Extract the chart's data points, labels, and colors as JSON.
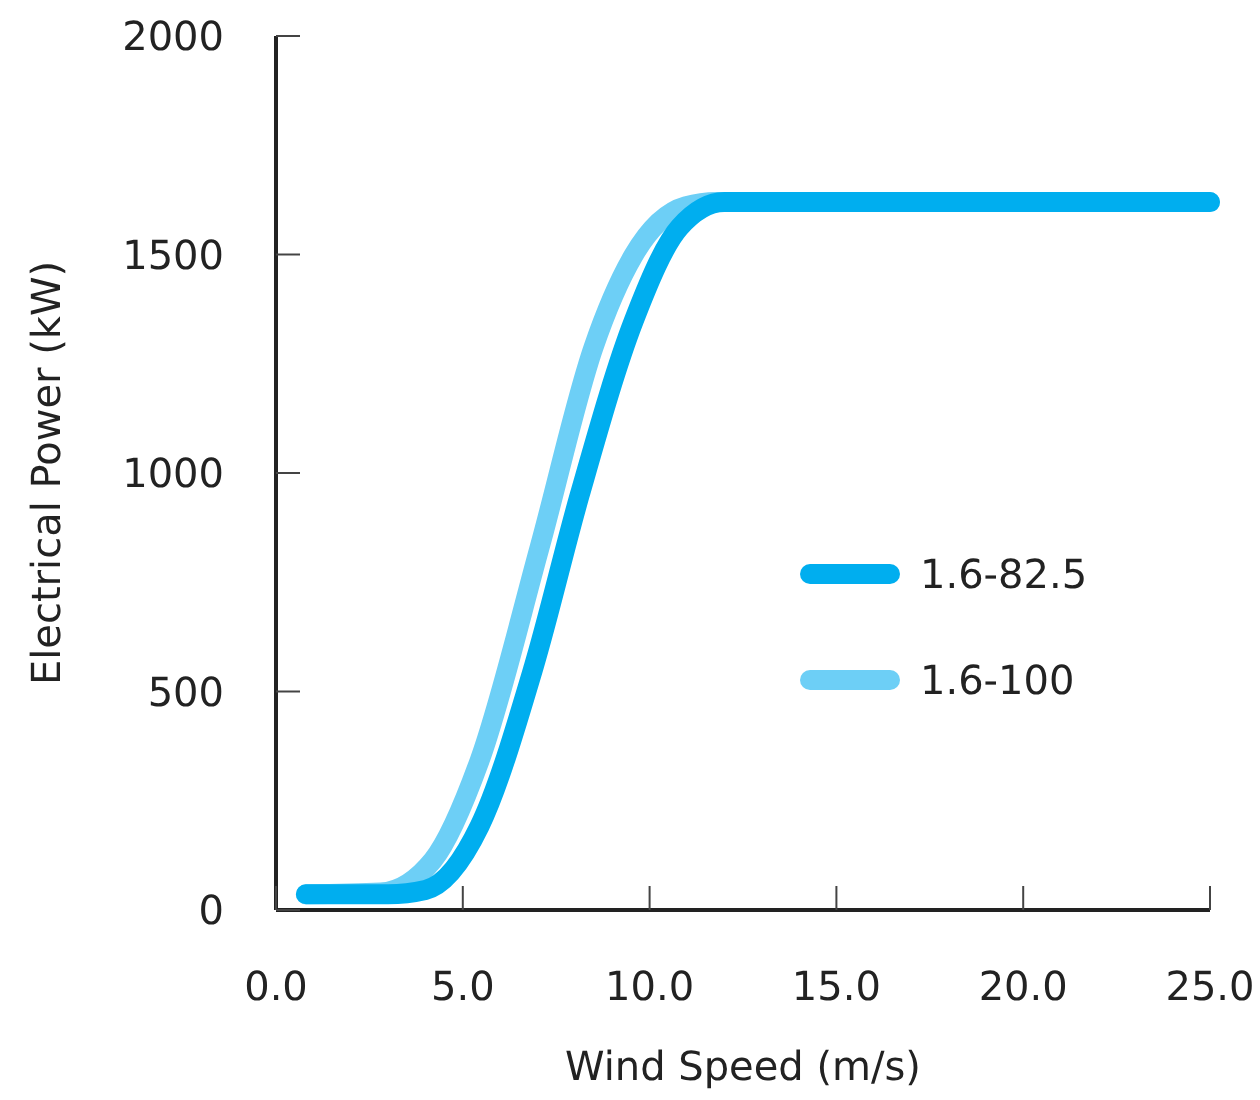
{
  "chart_data": {
    "type": "line",
    "xlabel": "Wind Speed (m/s)",
    "ylabel": "Electrical Power (kW)",
    "xlim": [
      0,
      25
    ],
    "xticks": [
      {
        "value": 0,
        "label": "0.0"
      },
      {
        "value": 5,
        "label": "5.0"
      },
      {
        "value": 10,
        "label": "10.0"
      },
      {
        "value": 15,
        "label": "15.0"
      },
      {
        "value": 20,
        "label": "20.0"
      },
      {
        "value": 25,
        "label": "25.0"
      }
    ],
    "ylim": [
      0,
      2000
    ],
    "yticks": [
      0,
      500,
      1000,
      1500,
      2000
    ],
    "grid": false,
    "legend": "right",
    "line_style": "solid",
    "marker": "none",
    "series": [
      {
        "name": "1.6-82.5",
        "color": "#00aeef",
        "x": [
          0.8,
          3.0,
          4.0,
          5.45,
          6.9,
          8.13,
          9.57,
          10.8,
          12.0,
          25
        ],
        "values": [
          36,
          36,
          46,
          192,
          557,
          950,
          1347,
          1562,
          1620,
          1620
        ]
      },
      {
        "name": "1.6-100",
        "color": "#6dcff6",
        "x": [
          0.8,
          2.8,
          4.2,
          5.45,
          7.06,
          8.5,
          9.57,
          10.96,
          11.8,
          25
        ],
        "values": [
          36,
          40,
          114,
          342,
          831,
          1288,
          1498,
          1610,
          1620,
          1620
        ]
      }
    ]
  }
}
